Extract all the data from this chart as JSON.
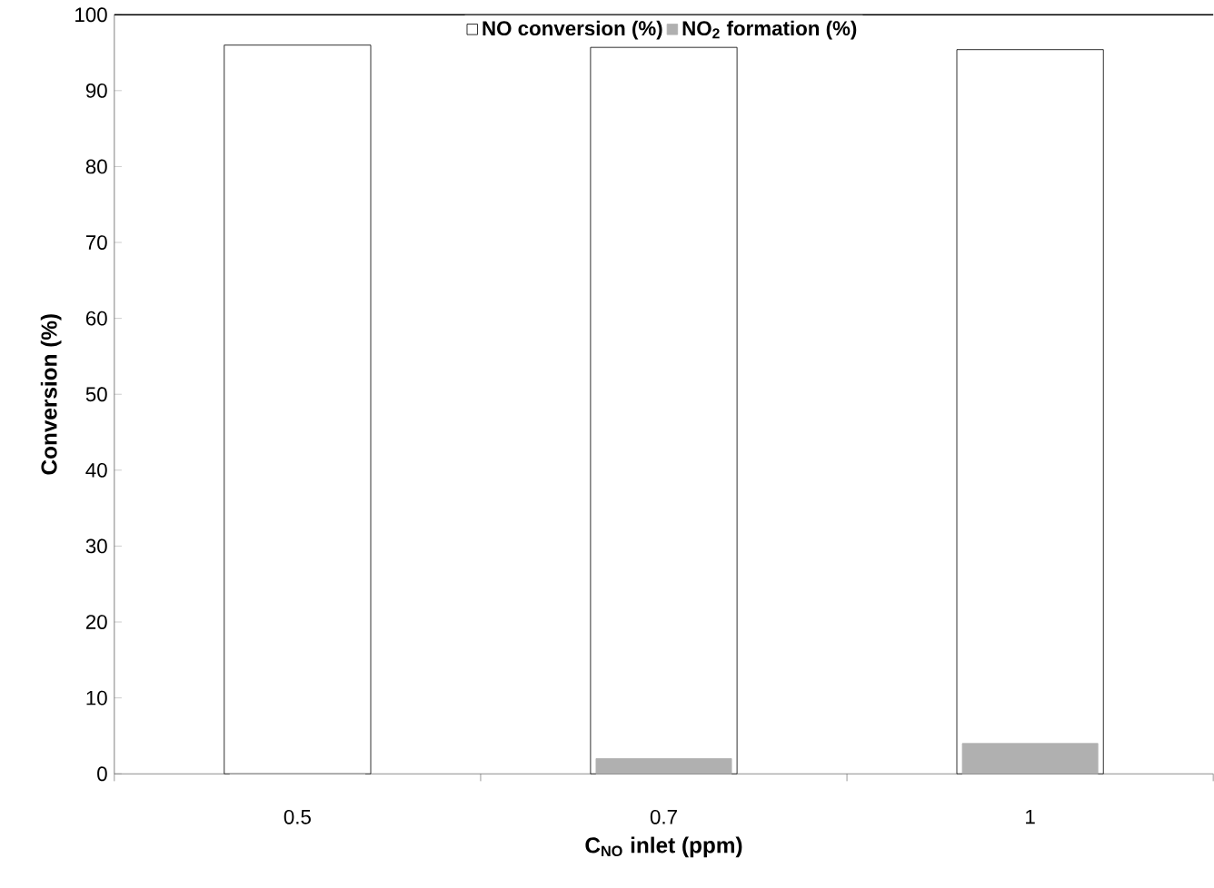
{
  "chart_data": {
    "type": "bar",
    "xlabel": "C$_{NO}$ inlet (ppm)",
    "ylabel": "Conversion (%)",
    "categories": [
      "0.5",
      "0.7",
      "1"
    ],
    "series": [
      {
        "name": "NO conversion (%)",
        "color": "#ffffff",
        "values": [
          96,
          95.7,
          95.4
        ]
      },
      {
        "name": "NO$_{2}$ formation (%)",
        "color": "#b0b0b0",
        "values": [
          0,
          2,
          4
        ]
      }
    ],
    "ylim": [
      0,
      100
    ],
    "yticks": [
      0,
      10,
      20,
      30,
      40,
      50,
      60,
      70,
      80,
      90,
      100
    ],
    "legend": "top",
    "grid": false
  }
}
